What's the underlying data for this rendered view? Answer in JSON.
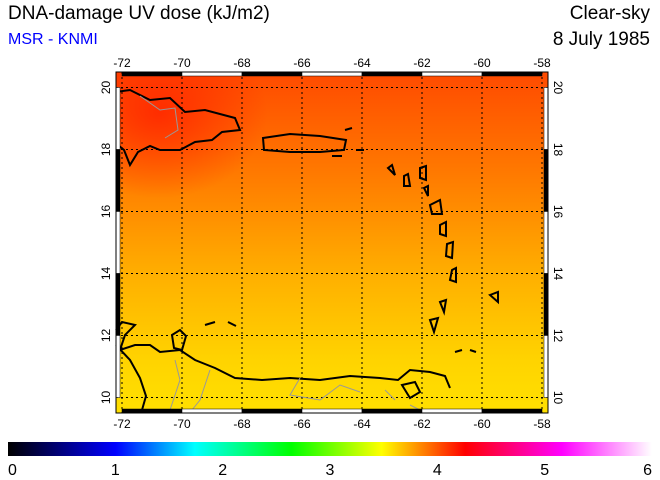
{
  "header": {
    "title": "DNA-damage UV dose (kJ/m2)",
    "credit": "MSR - KNMI",
    "sky": "Clear-sky",
    "date": "8 July 1985"
  },
  "map": {
    "lon_ticks": [
      "-72",
      "-70",
      "-68",
      "-66",
      "-64",
      "-62",
      "-60",
      "-58"
    ],
    "lat_ticks": [
      "20",
      "18",
      "16",
      "14",
      "12",
      "10"
    ],
    "lon_range": [
      -72.2,
      -57.8
    ],
    "lat_range": [
      9.5,
      20.5
    ]
  },
  "colorbar": {
    "labels": [
      "0",
      "1",
      "2",
      "3",
      "4",
      "5",
      "6"
    ],
    "range": [
      0,
      6
    ],
    "colors": [
      "#000000",
      "#0000ff",
      "#00ffff",
      "#00ff00",
      "#ffff00",
      "#ff0000",
      "#ff00ff",
      "#ffffff"
    ]
  }
}
